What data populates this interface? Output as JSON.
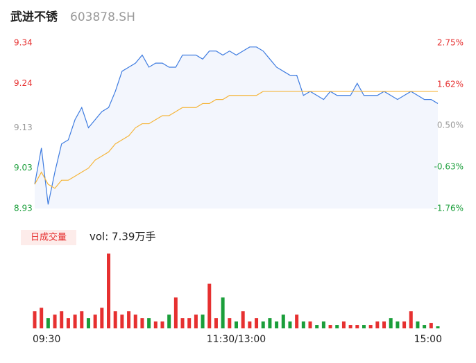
{
  "chart_data": {
    "type": "line",
    "title": "武进不锈",
    "subtitle": "603878.SH",
    "x": [
      0,
      4,
      8,
      12,
      16,
      20,
      24,
      28,
      32,
      36,
      40,
      44,
      48,
      52,
      56,
      60,
      64,
      68,
      72,
      76,
      80,
      84,
      88,
      92,
      96,
      100,
      104,
      108,
      112,
      116,
      120,
      124,
      128,
      132,
      136,
      140,
      144,
      148,
      152,
      156,
      160,
      164,
      168,
      172,
      176,
      180,
      184,
      188,
      192,
      196,
      200,
      204,
      208,
      212,
      216,
      220,
      224,
      228,
      232,
      236,
      240
    ],
    "xlim": [
      0,
      240
    ],
    "xticks": [
      {
        "value": 0,
        "label": "09:30"
      },
      {
        "value": 120,
        "label": "11:30/13:00"
      },
      {
        "value": 240,
        "label": "15:00"
      }
    ],
    "ylim": [
      8.93,
      9.34
    ],
    "yticks": [
      9.34,
      9.24,
      9.13,
      9.03,
      8.93
    ],
    "ytick_colors": [
      "#e63030",
      "#e63030",
      "#999999",
      "#1a9e3a",
      "#1a9e3a"
    ],
    "y2lim": [
      -1.76,
      2.75
    ],
    "y2ticks": [
      {
        "value": 2.75,
        "label": "2.75%"
      },
      {
        "value": 1.62,
        "label": "1.62%"
      },
      {
        "value": 0.5,
        "label": "0.50%"
      },
      {
        "value": -0.63,
        "label": "-0.63%"
      },
      {
        "value": -1.76,
        "label": "-1.76%"
      }
    ],
    "series": [
      {
        "name": "price",
        "color": "#3d7be0",
        "values": [
          8.99,
          9.08,
          8.94,
          9.02,
          9.09,
          9.1,
          9.15,
          9.18,
          9.13,
          9.15,
          9.17,
          9.18,
          9.22,
          9.27,
          9.28,
          9.29,
          9.31,
          9.28,
          9.29,
          9.29,
          9.28,
          9.28,
          9.31,
          9.31,
          9.31,
          9.3,
          9.32,
          9.32,
          9.31,
          9.32,
          9.31,
          9.32,
          9.33,
          9.33,
          9.32,
          9.3,
          9.28,
          9.27,
          9.26,
          9.26,
          9.21,
          9.22,
          9.21,
          9.2,
          9.22,
          9.21,
          9.21,
          9.21,
          9.24,
          9.21,
          9.21,
          9.21,
          9.22,
          9.21,
          9.2,
          9.21,
          9.22,
          9.21,
          9.2,
          9.2,
          9.19
        ]
      },
      {
        "name": "average",
        "color": "#f5b53a",
        "values": [
          8.99,
          9.02,
          8.99,
          8.98,
          9.0,
          9.0,
          9.01,
          9.02,
          9.03,
          9.05,
          9.06,
          9.07,
          9.09,
          9.1,
          9.11,
          9.13,
          9.14,
          9.14,
          9.15,
          9.16,
          9.16,
          9.17,
          9.18,
          9.18,
          9.18,
          9.19,
          9.19,
          9.2,
          9.2,
          9.21,
          9.21,
          9.21,
          9.21,
          9.21,
          9.22,
          9.22,
          9.22,
          9.22,
          9.22,
          9.22,
          9.22,
          9.22,
          9.22,
          9.22,
          9.22,
          9.22,
          9.22,
          9.22,
          9.22,
          9.22,
          9.22,
          9.22,
          9.22,
          9.22,
          9.22,
          9.22,
          9.22,
          9.22,
          9.22,
          9.22,
          9.22
        ]
      }
    ],
    "volume_label": "日成交量",
    "volume_text": "vol: 7.39万手",
    "volume_ylim": [
      0,
      110
    ],
    "volume": [
      25,
      30,
      15,
      20,
      25,
      15,
      20,
      25,
      15,
      20,
      30,
      109,
      25,
      20,
      25,
      20,
      15,
      15,
      10,
      10,
      20,
      45,
      15,
      15,
      20,
      20,
      65,
      15,
      45,
      15,
      10,
      25,
      10,
      15,
      10,
      15,
      10,
      20,
      10,
      20,
      10,
      10,
      5,
      10,
      5,
      5,
      10,
      5,
      5,
      5,
      5,
      10,
      10,
      15,
      10,
      10,
      25,
      10,
      5,
      8,
      3
    ],
    "up_color": "#e63030",
    "down_color": "#1a9e3a"
  }
}
